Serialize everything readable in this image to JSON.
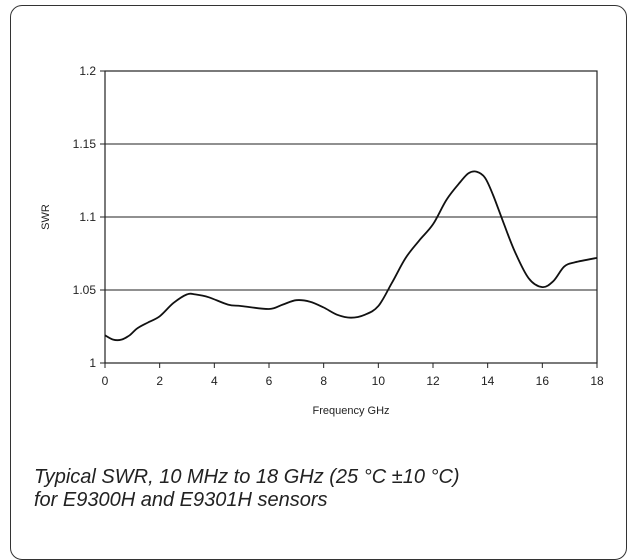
{
  "chart_data": {
    "type": "line",
    "xlabel": "Frequency GHz",
    "ylabel": "SWR",
    "xlim": [
      0,
      18
    ],
    "ylim": [
      1,
      1.2
    ],
    "x_ticks": [
      "0",
      "2",
      "4",
      "6",
      "8",
      "10",
      "12",
      "14",
      "16",
      "18"
    ],
    "y_ticks": [
      "1",
      "1.05",
      "1.1",
      "1.15",
      "1.2"
    ],
    "grid": "horizontal",
    "series": [
      {
        "color": "#111111",
        "x": [
          0,
          0.3,
          0.6,
          0.9,
          1.2,
          1.6,
          2.0,
          2.5,
          3.0,
          3.3,
          3.8,
          4.5,
          5.0,
          6.0,
          6.5,
          7.0,
          7.5,
          8.0,
          8.5,
          9.0,
          9.5,
          10.0,
          10.5,
          11.0,
          11.5,
          12.0,
          12.5,
          13.0,
          13.3,
          13.6,
          13.9,
          14.2,
          14.6,
          15.0,
          15.5,
          16.0,
          16.4,
          16.8,
          17.2,
          18.0
        ],
        "y": [
          1.019,
          1.016,
          1.016,
          1.019,
          1.024,
          1.028,
          1.032,
          1.041,
          1.047,
          1.047,
          1.045,
          1.04,
          1.039,
          1.037,
          1.04,
          1.043,
          1.042,
          1.038,
          1.033,
          1.031,
          1.033,
          1.039,
          1.055,
          1.072,
          1.084,
          1.095,
          1.112,
          1.124,
          1.13,
          1.131,
          1.127,
          1.115,
          1.095,
          1.076,
          1.058,
          1.052,
          1.056,
          1.066,
          1.069,
          1.072
        ]
      }
    ]
  },
  "caption": {
    "line1": "Typical SWR, 10 MHz to 18 GHz (25 °C ±10 °C)",
    "line2": "for E9300H and E9301H sensors"
  }
}
